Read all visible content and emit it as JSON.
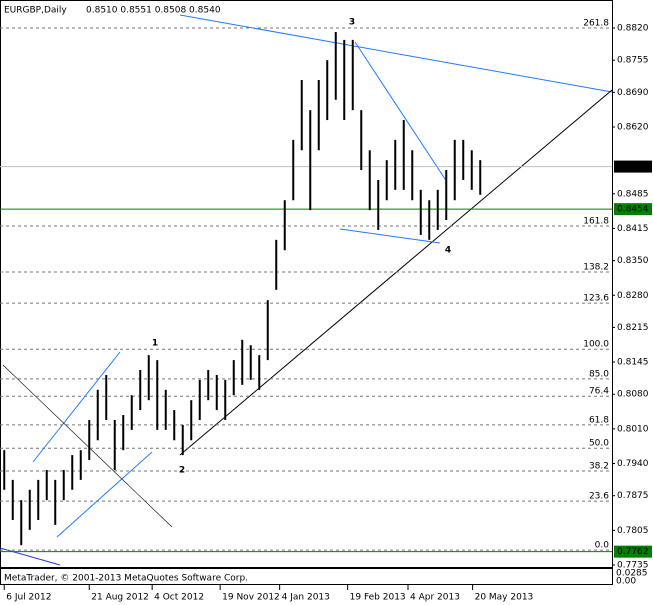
{
  "chart_data": {
    "type": "ohlc",
    "symbol": "EURGBP,Daily",
    "ohlc_header": "0.8510 0.8551 0.8508 0.8540",
    "copyright": "MetaTrader, © 2001-2013 MetaQuotes Software Corp.",
    "subpane_labels": [
      "0.0285",
      "0.00"
    ],
    "color": "#000000",
    "high": [
      0.7967,
      0.7907,
      0.7866,
      0.7887,
      0.7907,
      0.7927,
      0.7907,
      0.7927,
      0.7957,
      0.7967,
      0.8028,
      0.8089,
      0.8119,
      0.8028,
      0.8038,
      0.8078,
      0.8129,
      0.8159,
      0.8149,
      0.8089,
      0.8048,
      0.8018,
      0.8068,
      0.8109,
      0.8129,
      0.8119,
      0.8109,
      0.8149,
      0.819,
      0.8179,
      0.8159,
      0.827,
      0.8392,
      0.8472,
      0.8594,
      0.8715,
      0.8654,
      0.8715,
      0.8755,
      0.8812,
      0.8796,
      0.8796,
      0.8654,
      0.8573,
      0.8513,
      0.8553,
      0.8594,
      0.8634,
      0.8573,
      0.8493,
      0.8472,
      0.8493,
      0.8533,
      0.8594,
      0.8594,
      0.8573,
      0.8553
    ],
    "low": [
      0.7887,
      0.7826,
      0.7775,
      0.7806,
      0.7826,
      0.7866,
      0.7816,
      0.7866,
      0.7887,
      0.7907,
      0.7947,
      0.7987,
      0.8028,
      0.7927,
      0.7967,
      0.8008,
      0.8048,
      0.8068,
      0.8008,
      0.8008,
      0.7987,
      0.7957,
      0.7987,
      0.8028,
      0.8068,
      0.8048,
      0.8028,
      0.8078,
      0.8099,
      0.8109,
      0.8089,
      0.8149,
      0.8291,
      0.8371,
      0.8472,
      0.8573,
      0.8452,
      0.8573,
      0.8634,
      0.8675,
      0.8634,
      0.8654,
      0.8533,
      0.8452,
      0.8412,
      0.8472,
      0.8493,
      0.8493,
      0.8472,
      0.8402,
      0.8392,
      0.8412,
      0.8432,
      0.8472,
      0.8513,
      0.8493,
      0.8483
    ],
    "xlim": [
      -0.5,
      71.5
    ],
    "xticks": [
      {
        "value": 0,
        "label": "6 Jul 2012"
      },
      {
        "value": 10,
        "label": "21 Aug 2012"
      },
      {
        "value": 17.4,
        "label": "4 Oct 2012"
      },
      {
        "value": 25.4,
        "label": "19 Nov 2012"
      },
      {
        "value": 32.4,
        "label": "4 Jan 2013"
      },
      {
        "value": 40.4,
        "label": "19 Feb 2013"
      },
      {
        "value": 47.5,
        "label": "4 Apr 2013"
      },
      {
        "value": 55.1,
        "label": "20 May 2013"
      }
    ],
    "ylim": [
      0.7735,
      0.882
    ],
    "yticks": [
      {
        "value": 0.882,
        "label": "0.8820"
      },
      0.8755,
      {
        "value": 0.869,
        "label": "0.8690"
      },
      {
        "value": 0.862,
        "label": "0.8620"
      },
      0.8485,
      0.8415,
      {
        "value": 0.835,
        "label": "0.8350"
      },
      {
        "value": 0.828,
        "label": "0.8280"
      },
      0.8215,
      0.8145,
      {
        "value": 0.808,
        "label": "0.8080"
      },
      {
        "value": 0.801,
        "label": "0.8010"
      },
      {
        "value": 0.794,
        "label": "0.7940"
      },
      0.7875,
      0.7805,
      0.7735
    ],
    "fib_levels": [
      {
        "value": 0.882,
        "label": "261.8"
      },
      {
        "value": 0.842,
        "label": "161.8"
      },
      {
        "value": 0.8327,
        "label": "138.2"
      },
      {
        "value": 0.8264,
        "label": "123.6"
      },
      {
        "value": 0.8171,
        "label": "100.0"
      },
      {
        "value": 0.8111,
        "label": "85.0"
      },
      {
        "value": 0.8076,
        "label": "76.4"
      },
      {
        "value": 0.8018,
        "label": "61.8"
      },
      {
        "value": 0.7971,
        "label": "50.0"
      },
      {
        "value": 0.7925,
        "label": "38.2"
      },
      {
        "value": 0.7864,
        "label": "23.6"
      },
      {
        "value": 0.7765,
        "label": "0.0"
      }
    ],
    "price_lines": [
      {
        "value": 0.854,
        "label": "0.8540",
        "color": "#c0c0c0"
      },
      {
        "value": 0.8454,
        "label": "0.8454",
        "color": "#008000"
      },
      {
        "value": 0.7762,
        "label": "0.7762",
        "color": "#008000"
      }
    ],
    "wave_labels": [
      "1",
      "2",
      "3",
      "4"
    ],
    "wave_color": "#c0007f"
  }
}
